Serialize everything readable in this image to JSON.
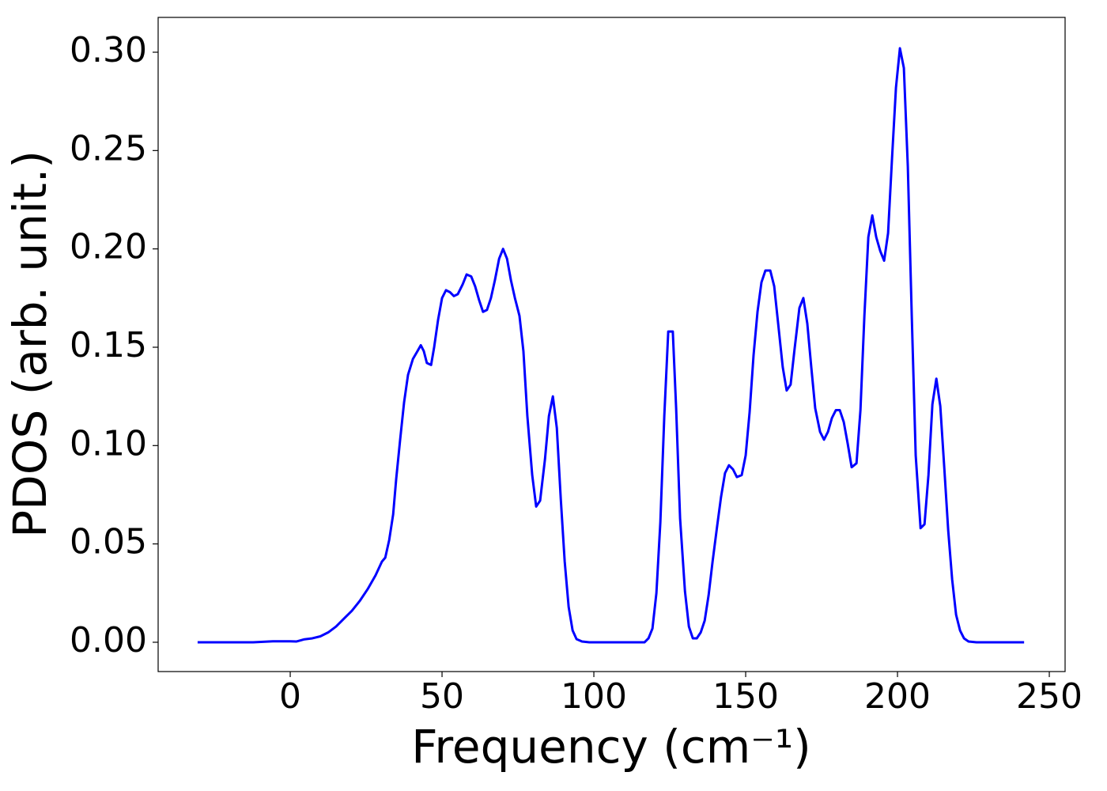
{
  "chart_data": {
    "type": "line",
    "xlabel": "Frequency (cm⁻¹)",
    "ylabel": "PDOS (arb. unit.)",
    "color": "#0000ff",
    "x": [
      -30.5,
      -12.2,
      -5.7,
      0,
      2.1,
      4.7,
      7.3,
      9.9,
      12.5,
      15.1,
      17.7,
      20.3,
      22.9,
      25.5,
      28.1,
      30.2,
      31.3,
      32.6,
      33.9,
      34.9,
      36.2,
      37.5,
      38.8,
      40.4,
      41.9,
      43,
      44,
      45,
      46.4,
      47.4,
      48.7,
      50,
      51.3,
      52.6,
      53.9,
      55.2,
      56.8,
      58.1,
      59.6,
      60.9,
      62.2,
      63.5,
      64.8,
      66.1,
      67.4,
      68.8,
      70.1,
      71.4,
      72.7,
      74,
      75.5,
      76.8,
      78.1,
      79.7,
      81,
      82.3,
      83.9,
      85.2,
      86.5,
      87.8,
      89.1,
      90.4,
      91.7,
      93,
      94.3,
      96.1,
      98.5,
      116.7,
      118,
      119.3,
      120.6,
      121.9,
      123.2,
      124.5,
      126,
      127.1,
      128.4,
      130,
      131.3,
      132.6,
      133.9,
      135.2,
      136.5,
      137.8,
      139.1,
      140.6,
      141.9,
      143.2,
      144.5,
      145.8,
      147.1,
      148.7,
      150,
      151.3,
      152.6,
      153.9,
      155.2,
      156.5,
      158.1,
      159.4,
      160.7,
      162.2,
      163.5,
      164.8,
      166.1,
      167.7,
      169,
      170.3,
      171.6,
      172.9,
      174.5,
      175.8,
      177.1,
      178.4,
      179.7,
      181,
      182.3,
      183.6,
      184.9,
      186.5,
      187.8,
      189.1,
      190.4,
      191.7,
      193,
      194.3,
      195.6,
      196.9,
      198.2,
      199.5,
      200.8,
      202.1,
      203.4,
      204.7,
      206,
      207.6,
      208.9,
      210.2,
      211.5,
      212.8,
      214.1,
      215.4,
      216.7,
      218,
      219.3,
      220.6,
      221.9,
      223.4,
      226,
      241.7
    ],
    "values": [
      0,
      0,
      0.0005,
      0.0005,
      0.0004,
      0.0015,
      0.002,
      0.003,
      0.005,
      0.008,
      0.012,
      0.016,
      0.021,
      0.027,
      0.034,
      0.041,
      0.043,
      0.052,
      0.065,
      0.083,
      0.103,
      0.122,
      0.136,
      0.144,
      0.148,
      0.151,
      0.148,
      0.142,
      0.141,
      0.15,
      0.164,
      0.175,
      0.179,
      0.178,
      0.176,
      0.177,
      0.182,
      0.187,
      0.186,
      0.181,
      0.174,
      0.168,
      0.169,
      0.175,
      0.184,
      0.195,
      0.2,
      0.195,
      0.184,
      0.175,
      0.166,
      0.148,
      0.115,
      0.085,
      0.069,
      0.072,
      0.093,
      0.115,
      0.125,
      0.109,
      0.073,
      0.041,
      0.018,
      0.006,
      0.0016,
      0.0004,
      0,
      0,
      0.002,
      0.007,
      0.025,
      0.061,
      0.115,
      0.158,
      0.158,
      0.119,
      0.063,
      0.026,
      0.008,
      0.002,
      0.002,
      0.005,
      0.011,
      0.024,
      0.041,
      0.059,
      0.074,
      0.086,
      0.09,
      0.088,
      0.084,
      0.085,
      0.095,
      0.117,
      0.146,
      0.168,
      0.183,
      0.189,
      0.189,
      0.181,
      0.162,
      0.14,
      0.128,
      0.131,
      0.149,
      0.17,
      0.175,
      0.162,
      0.14,
      0.119,
      0.107,
      0.103,
      0.107,
      0.114,
      0.118,
      0.118,
      0.112,
      0.101,
      0.089,
      0.091,
      0.118,
      0.166,
      0.206,
      0.217,
      0.206,
      0.199,
      0.194,
      0.208,
      0.246,
      0.282,
      0.302,
      0.292,
      0.242,
      0.166,
      0.095,
      0.058,
      0.06,
      0.085,
      0.121,
      0.134,
      0.12,
      0.089,
      0.057,
      0.032,
      0.014,
      0.006,
      0.002,
      0.0004,
      0,
      0
    ],
    "xlim": [
      -43.5,
      255.2
    ],
    "ylim": [
      -0.0149,
      0.3177
    ],
    "xticks": [
      0,
      50,
      100,
      150,
      200,
      250
    ],
    "yticks": [
      {
        "value": 0,
        "label": "0.00"
      },
      {
        "value": 0.05,
        "label": "0.05"
      },
      {
        "value": 0.1,
        "label": "0.10"
      },
      {
        "value": 0.15,
        "label": "0.15"
      },
      {
        "value": 0.2,
        "label": "0.20"
      },
      {
        "value": 0.25,
        "label": "0.25"
      },
      {
        "value": 0.3,
        "label": "0.30"
      }
    ],
    "grid": false
  }
}
